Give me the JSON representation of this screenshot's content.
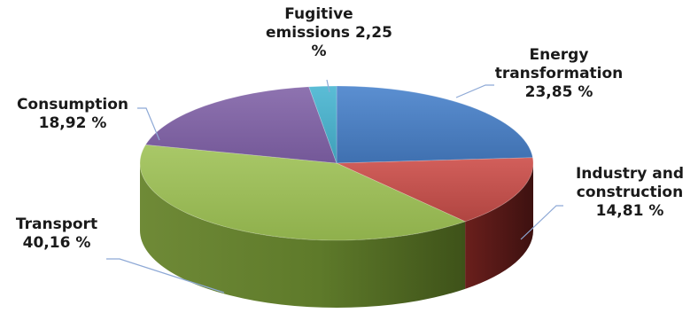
{
  "chart_data": {
    "type": "pie",
    "title": "",
    "slices": [
      {
        "key": "energy",
        "name": "Energy transformation",
        "value": 23.85,
        "value_text": "23,85 %",
        "color": "#4a7ec0"
      },
      {
        "key": "industry",
        "name": "Industry and construction",
        "value": 14.81,
        "value_text": "14,81 %",
        "color": "#c0504d"
      },
      {
        "key": "transport",
        "name": "Transport",
        "value": 40.16,
        "value_text": "40,16 %",
        "color": "#9bbb59"
      },
      {
        "key": "consumption",
        "name": "Consumption",
        "value": 18.92,
        "value_text": "18,92 %",
        "color": "#8064a2"
      },
      {
        "key": "fugitive",
        "name": "Fugitive emissions",
        "value": 2.25,
        "value_text": "2,25 %",
        "color": "#4bacc6"
      }
    ]
  },
  "labels": {
    "fugitive": {
      "line1": "Fugitive",
      "line2": "emissions 2,25",
      "line3": "%"
    },
    "energy": {
      "line1": "Energy",
      "line2": "transformation",
      "line3": "23,85 %"
    },
    "industry": {
      "line1": "Industry and",
      "line2": "construction",
      "line3": "14,81 %"
    },
    "transport": {
      "line1": "Transport",
      "line2": "40,16 %"
    },
    "consumption": {
      "line1": "Consumption",
      "line2": "18,92 %"
    }
  }
}
